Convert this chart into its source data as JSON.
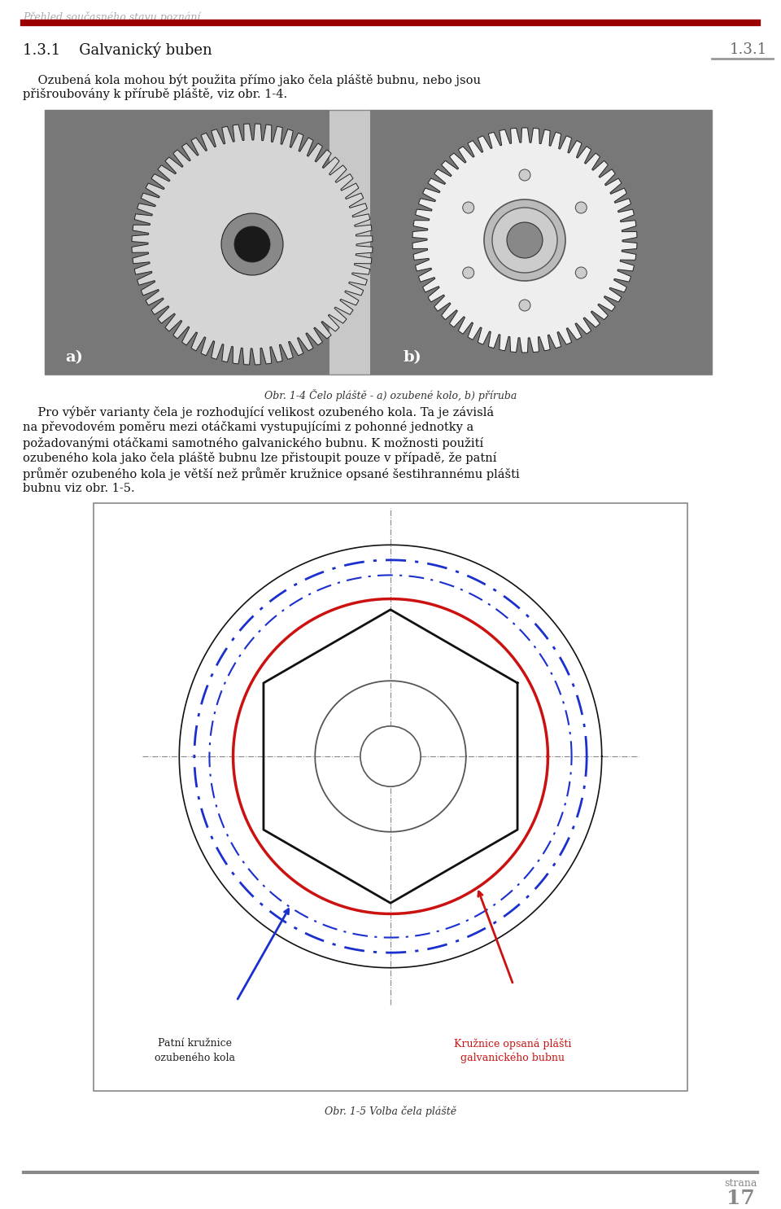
{
  "page_width": 9.6,
  "page_height": 14.85,
  "dpi": 100,
  "bg_color": "#ffffff",
  "header_text": "Přehled současného stavu poznání",
  "header_color": "#aaaaaa",
  "header_line_color": "#9b0000",
  "section_number": "1.3.1",
  "section_title": "Galvanický buben",
  "body_text_1a": "    Ozubená kola mohou být použita přímo jako čela pláště bubnu, nebo jsou",
  "body_text_1b": "přišroubovány k přírubě pláště, viz obr. 1-4.",
  "fig1_caption": "Obr. 1-4 Čelo pláště - a) ozubené kolo, b) příruba",
  "fig1_label_a": "a)",
  "fig1_label_b": "b)",
  "body_text_2": "    Pro výběr varianty čela je rozhodující velikost ozubeného kola. Ta je závislá",
  "body_text_3": "na převodovém poměru mezi otáčkami vystupujícími z pohonné jednotky a",
  "body_text_4": "požadovanými otáčkami samotného galvanického bubnu. K možnosti použití",
  "body_text_5": "ozubeného kola jako čela pláště bubnu lze přistoupit pouze v případě, že patní",
  "body_text_6": "průměr ozubeného kola je větší než průměr kružnice opsané šestihrannému plášti",
  "body_text_7": "bubnu viz obr. 1-5.",
  "fig2_caption": "Obr. 1-5 Volba čela pláště",
  "legend1_text": "Patní kružnice\nozubeného kola",
  "legend2_text": "Kružnice opsaná plášti\ngalvanického bubnu",
  "footer_line_color": "#888888",
  "footer_text_strana": "strana",
  "footer_text_page": "17",
  "gear_bg_color": "#c8c8c8",
  "gear_drum_color": "#909090",
  "gear_face_color_l": "#d8d8d8",
  "gear_face_color_r": "#eeeeee",
  "gear_edge_color": "#222222",
  "gear_hub_color": "#666666",
  "gear_hole_color": "#111111",
  "blue_dash_color": "#1a2fcc",
  "red_circle_color": "#cc1111",
  "black_circle_color": "#111111",
  "hex_color": "#111111",
  "crosshair_color": "#888888",
  "arrow_black_color": "#333333",
  "arrow_red_color": "#cc1111"
}
